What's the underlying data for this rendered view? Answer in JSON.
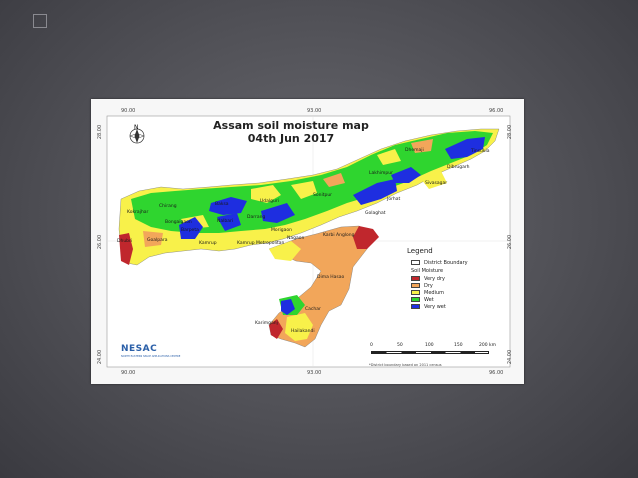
{
  "map": {
    "title": "Assam soil moisture map",
    "date": "04th Jun 2017",
    "lon_top": [
      "90.00",
      "93.00",
      "96.00"
    ],
    "lon_bottom": [
      "90.00",
      "93.00",
      "96.00"
    ],
    "lat_left": [
      "28.00",
      "26.00",
      "24.00"
    ],
    "lat_right": [
      "28.00",
      "26.00",
      "24.00"
    ],
    "north_label": "N",
    "districts": [
      "Dhemaji",
      "Tinsukia",
      "Lakhimpur",
      "Dibrugarh",
      "Sivasagar",
      "Jorhat",
      "Golaghat",
      "Sonitpur",
      "Chirang",
      "Kokrajhar",
      "Baksa",
      "Udalguri",
      "Darrang",
      "Nalbari",
      "Barpeta",
      "Bongaigaon",
      "Dhubri",
      "Goalpara",
      "Kamrup",
      "Kamrup Metropolitan",
      "Morigaon",
      "Nagaon",
      "Karbi Anglong",
      "Dima Hasao",
      "Cachar",
      "Karimganj",
      "Hailakandi"
    ],
    "logo": "NESAC",
    "logo_sub": "NORTH EASTERN SPACE APPLICATIONS CENTRE"
  },
  "legend": {
    "title": "Legend",
    "boundary_label": "District Boundary",
    "section": "Soil Moisture",
    "classes": [
      {
        "label": "Very dry",
        "color": "#c0272d"
      },
      {
        "label": "Dry",
        "color": "#f2a65a"
      },
      {
        "label": "Medium",
        "color": "#f8f14a"
      },
      {
        "label": "Wet",
        "color": "#2fd52f"
      },
      {
        "label": "Very wet",
        "color": "#1e2ee0"
      }
    ]
  },
  "scale": {
    "ticks": [
      "0",
      "50",
      "100",
      "150",
      "200 km"
    ],
    "note": "*District boundary based on 2011 census"
  }
}
